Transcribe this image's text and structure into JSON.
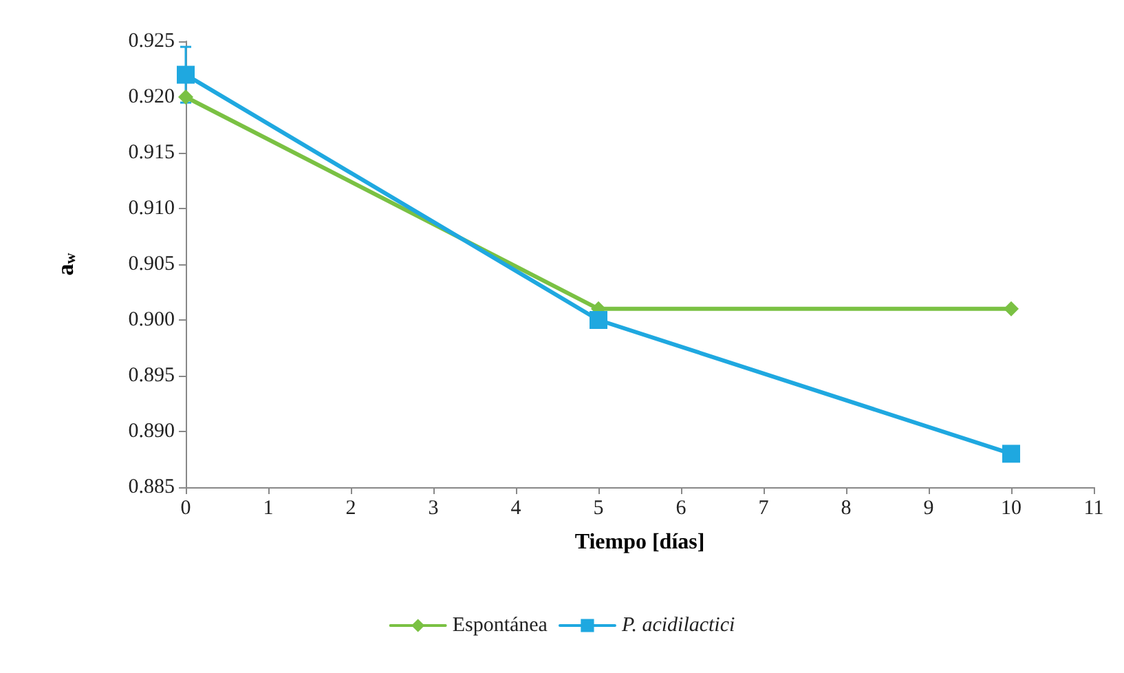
{
  "chart_data": {
    "type": "line",
    "xlabel": "Tiempo [días]",
    "ylabel": "a$_{w}$",
    "x": [
      0,
      5,
      10
    ],
    "series": [
      {
        "name": "Espontánea",
        "color": "#7ac143",
        "values": [
          0.92,
          0.901,
          0.901
        ],
        "marker": "diamond"
      },
      {
        "name": "P. acidilactici",
        "color": "#1fa8e0",
        "values": [
          0.922,
          0.9,
          0.888
        ],
        "marker": "square",
        "errors": [
          0.0025,
          null,
          null
        ]
      }
    ],
    "xlim": [
      0,
      11
    ],
    "xticks": [
      0,
      1,
      2,
      3,
      4,
      5,
      6,
      7,
      8,
      9,
      10,
      11
    ],
    "ylim": [
      0.885,
      0.925
    ],
    "yticks": [
      0.885,
      {
        "value": 0.89,
        "label": "0.890"
      },
      0.895,
      {
        "value": 0.9,
        "label": "0.900"
      },
      0.905,
      {
        "value": 0.91,
        "label": "0.910"
      },
      0.915,
      {
        "value": 0.92,
        "label": "0.920"
      },
      0.925
    ],
    "grid": false,
    "legend": "bottom",
    "line_style": "solid"
  }
}
